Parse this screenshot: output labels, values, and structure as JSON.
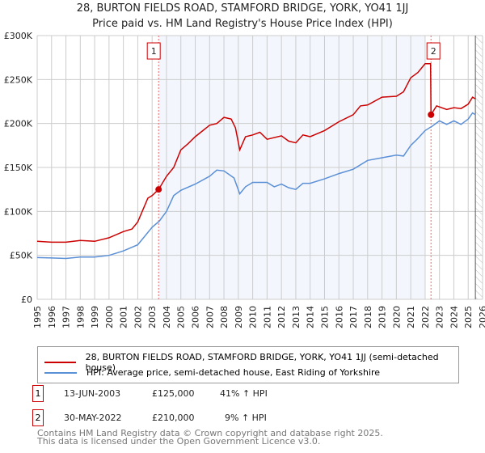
{
  "title": "28, BURTON FIELDS ROAD, STAMFORD BRIDGE, YORK, YO41 1JJ",
  "subtitle": "Price paid vs. HM Land Registry's House Price Index (HPI)",
  "chart_data": {
    "type": "line",
    "xlim": [
      1995,
      2026
    ],
    "ylim": [
      0,
      300000
    ],
    "yticks": [
      {
        "v": 0,
        "label": "£0"
      },
      {
        "v": 50000,
        "label": "£50K"
      },
      {
        "v": 100000,
        "label": "£100K"
      },
      {
        "v": 150000,
        "label": "£150K"
      },
      {
        "v": 200000,
        "label": "£200K"
      },
      {
        "v": 250000,
        "label": "£250K"
      },
      {
        "v": 300000,
        "label": "£300K"
      }
    ],
    "xticks": [
      "1995",
      "1996",
      "1997",
      "1998",
      "1999",
      "2000",
      "2001",
      "2002",
      "2003",
      "2004",
      "2005",
      "2006",
      "2007",
      "2008",
      "2009",
      "2010",
      "2011",
      "2012",
      "2013",
      "2014",
      "2015",
      "2016",
      "2017",
      "2018",
      "2019",
      "2020",
      "2021",
      "2022",
      "2023",
      "2024",
      "2025",
      "2026"
    ],
    "grid": true,
    "shaded_range": [
      2003.45,
      2021.95
    ],
    "hatched_from": 2025.5,
    "series": [
      {
        "name": "28, BURTON FIELDS ROAD, STAMFORD BRIDGE, YORK, YO41 1JJ (semi-detached house)",
        "color": "#cc0000",
        "x": [
          1995,
          1996,
          1997,
          1998,
          1999,
          2000,
          2001,
          2001.6,
          2002,
          2002.7,
          2003,
          2003.45,
          2004,
          2004.5,
          2005,
          2005.5,
          2006,
          2007,
          2007.5,
          2008,
          2008.5,
          2008.8,
          2009.1,
          2009.5,
          2010,
          2010.5,
          2011,
          2012,
          2012.5,
          2013,
          2013.5,
          2014,
          2015,
          2016,
          2017,
          2017.5,
          2018,
          2019,
          2020,
          2020.5,
          2021,
          2021.5,
          2022,
          2022.38,
          2022.41,
          2022.8,
          2023.5,
          2024,
          2024.5,
          2025,
          2025.3,
          2025.5
        ],
        "y": [
          66000,
          65000,
          65000,
          67000,
          66000,
          70000,
          77000,
          80000,
          88000,
          115000,
          118000,
          125000,
          140000,
          150000,
          170000,
          177000,
          185000,
          198000,
          200000,
          207000,
          205000,
          195000,
          170000,
          185000,
          187000,
          190000,
          182000,
          186000,
          180000,
          178000,
          187000,
          185000,
          192000,
          202000,
          210000,
          220000,
          221000,
          230000,
          231000,
          236000,
          252000,
          258000,
          268000,
          268000,
          210000,
          220000,
          216000,
          218000,
          217000,
          222000,
          230000,
          228000
        ]
      },
      {
        "name": "HPI: Average price, semi-detached house, East Riding of Yorkshire",
        "color": "#5b8fd6",
        "x": [
          1995,
          1996,
          1997,
          1998,
          1999,
          2000,
          2001,
          2002,
          2003,
          2003.5,
          2004,
          2004.5,
          2005,
          2006,
          2007,
          2007.5,
          2008,
          2008.7,
          2009.1,
          2009.5,
          2010,
          2011,
          2011.5,
          2012,
          2012.5,
          2013,
          2013.5,
          2014,
          2015,
          2016,
          2017,
          2018,
          2019,
          2020,
          2020.5,
          2021,
          2021.5,
          2022,
          2022.5,
          2023,
          2023.5,
          2024,
          2024.5,
          2025,
          2025.3,
          2025.5
        ],
        "y": [
          47500,
          47000,
          46500,
          48000,
          48000,
          50000,
          55000,
          62000,
          82000,
          89000,
          100000,
          118000,
          124000,
          131000,
          140000,
          147000,
          146000,
          138000,
          120000,
          128000,
          133000,
          133000,
          128000,
          131000,
          127000,
          125000,
          132000,
          132000,
          137000,
          143000,
          148000,
          158000,
          161000,
          164000,
          163000,
          175000,
          183000,
          192000,
          197000,
          203000,
          199000,
          203000,
          199000,
          205000,
          212000,
          210000
        ]
      }
    ],
    "sales": [
      {
        "id": "1",
        "x": 2003.45,
        "y": 125000
      },
      {
        "id": "2",
        "x": 2022.41,
        "y": 210000
      }
    ]
  },
  "legend": [
    "28, BURTON FIELDS ROAD, STAMFORD BRIDGE, YORK, YO41 1JJ (semi-detached house)",
    "HPI: Average price, semi-detached house, East Riding of Yorkshire"
  ],
  "table": [
    {
      "id": "1",
      "date": "13-JUN-2003",
      "price": "£125,000",
      "hpi": "41% ↑ HPI"
    },
    {
      "id": "2",
      "date": "30-MAY-2022",
      "price": "£210,000",
      "hpi": "9% ↑ HPI"
    }
  ],
  "footer": [
    "Contains HM Land Registry data © Crown copyright and database right 2025.",
    "This data is licensed under the Open Government Licence v3.0."
  ]
}
